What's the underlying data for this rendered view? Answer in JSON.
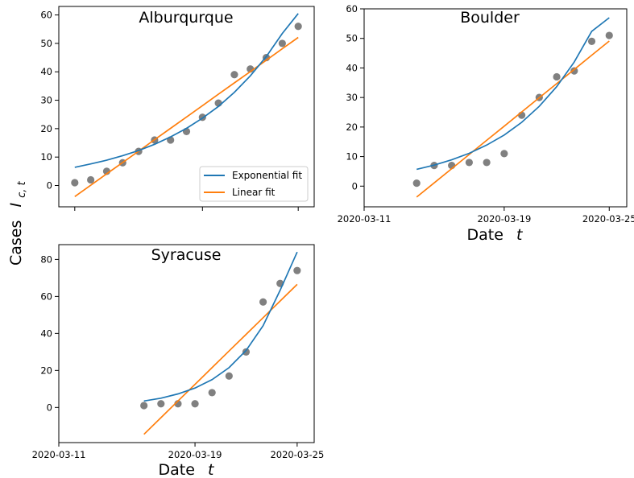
{
  "figure": {
    "ylabel": "Cases",
    "ylabel_math": "I",
    "ylabel_sub": "c, t",
    "xlabel": "Date",
    "xlabel_math": "t"
  },
  "legend": {
    "items": [
      {
        "label": "Exponential fit",
        "color": "#1f77b4"
      },
      {
        "label": "Linear fit",
        "color": "#ff7f0e"
      }
    ],
    "placement": "lower-right"
  },
  "colors": {
    "points": "#808080",
    "exp": "#1f77b4",
    "lin": "#ff7f0e"
  },
  "chart_data": [
    {
      "type": "scatter",
      "title": "Alburqurque",
      "xlim": [
        "2020-03-10",
        "2020-03-26"
      ],
      "ylim": [
        -7.5,
        63
      ],
      "yticks": [
        0,
        10,
        20,
        30,
        40,
        50,
        60
      ],
      "xticks": [
        "2020-03-11",
        "2020-03-19",
        "2020-03-25"
      ],
      "show_xtick_labels": false,
      "x": [
        "2020-03-11",
        "2020-03-12",
        "2020-03-13",
        "2020-03-14",
        "2020-03-15",
        "2020-03-16",
        "2020-03-17",
        "2020-03-18",
        "2020-03-19",
        "2020-03-20",
        "2020-03-21",
        "2020-03-22",
        "2020-03-23",
        "2020-03-24",
        "2020-03-25"
      ],
      "points": [
        1,
        2,
        5,
        8,
        12,
        16,
        16,
        19,
        24,
        29,
        39,
        41,
        45,
        50,
        56
      ],
      "exp_fit": [
        6.4,
        7.6,
        8.9,
        10.5,
        12.3,
        14.5,
        17.1,
        20.1,
        23.7,
        27.8,
        32.8,
        38.6,
        45.4,
        53.5,
        60.5
      ],
      "lin_fit": [
        -3.9,
        0.1,
        4.1,
        8.1,
        12.1,
        16.1,
        20.1,
        24.1,
        28.1,
        32.1,
        36.1,
        40.1,
        44.1,
        48.1,
        52.1
      ],
      "show_legend": true,
      "show_xlabel": false
    },
    {
      "type": "scatter",
      "title": "Boulder",
      "xlim": [
        "2020-03-11",
        "2020-03-26"
      ],
      "ylim": [
        -7,
        60
      ],
      "yticks": [
        0,
        10,
        20,
        30,
        40,
        50,
        60
      ],
      "xticks": [
        "2020-03-11",
        "2020-03-19",
        "2020-03-25"
      ],
      "show_xtick_labels": true,
      "x": [
        "2020-03-14",
        "2020-03-15",
        "2020-03-16",
        "2020-03-17",
        "2020-03-18",
        "2020-03-19",
        "2020-03-20",
        "2020-03-21",
        "2020-03-22",
        "2020-03-23",
        "2020-03-24",
        "2020-03-25"
      ],
      "points": [
        1,
        7,
        7,
        8,
        8,
        11,
        24,
        30,
        37,
        39,
        49,
        51
      ],
      "exp_fit": [
        5.7,
        7.1,
        8.9,
        11.1,
        13.9,
        17.3,
        21.6,
        27.0,
        33.7,
        42.0,
        52.4,
        57.0
      ],
      "lin_fit": [
        -3.7,
        1.1,
        5.9,
        10.7,
        15.5,
        20.3,
        25.1,
        29.9,
        34.7,
        39.5,
        44.3,
        49.1
      ],
      "show_legend": false,
      "show_xlabel": true
    },
    {
      "type": "scatter",
      "title": "Syracuse",
      "xlim": [
        "2020-03-11",
        "2020-03-26"
      ],
      "ylim": [
        -19,
        88
      ],
      "yticks": [
        0,
        20,
        40,
        60,
        80
      ],
      "xticks": [
        "2020-03-11",
        "2020-03-19",
        "2020-03-25"
      ],
      "show_xtick_labels": true,
      "x": [
        "2020-03-16",
        "2020-03-17",
        "2020-03-18",
        "2020-03-19",
        "2020-03-20",
        "2020-03-21",
        "2020-03-22",
        "2020-03-23",
        "2020-03-24",
        "2020-03-25"
      ],
      "points": [
        1,
        2,
        2,
        2,
        8,
        17,
        30,
        57,
        67,
        74
      ],
      "exp_fit": [
        3.5,
        5.0,
        7.3,
        10.5,
        15.0,
        21.5,
        30.8,
        44.2,
        63.3,
        84.0
      ],
      "lin_fit": [
        -14.5,
        -5.5,
        3.5,
        12.5,
        21.5,
        30.5,
        39.5,
        48.5,
        57.5,
        66.5
      ],
      "show_legend": false,
      "show_xlabel": true
    }
  ]
}
